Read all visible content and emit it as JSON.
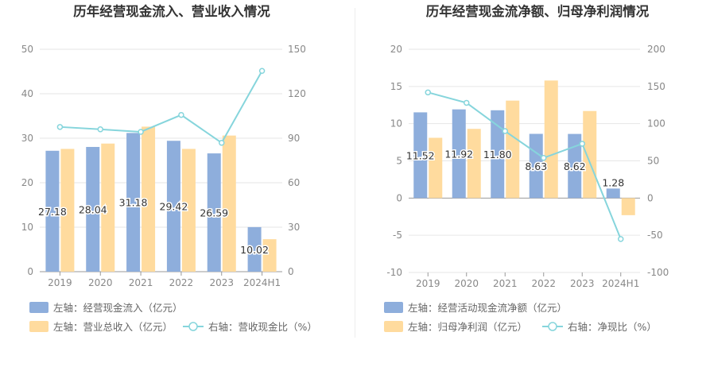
{
  "chart_data": [
    {
      "type": "bar",
      "title": "历年经营现金流入、营业收入情况",
      "categories": [
        "2019",
        "2020",
        "2021",
        "2022",
        "2023",
        "2024H1"
      ],
      "left_axis": {
        "ticks": [
          "0",
          "10",
          "20",
          "30",
          "40",
          "50"
        ],
        "ylim": [
          0,
          50
        ]
      },
      "right_axis": {
        "ticks": [
          "0",
          "30",
          "60",
          "90",
          "120",
          "150"
        ],
        "ylim": [
          0,
          150
        ]
      },
      "grid": true,
      "legend_position": "bottom-left",
      "series": [
        {
          "name": "左轴：经营现金流入（亿元）",
          "kind": "bar",
          "axis": "left",
          "color": "#8eaedc",
          "values": [
            27.18,
            28.04,
            31.18,
            29.42,
            26.59,
            10.02
          ],
          "labels": [
            "27.18",
            "28.04",
            "31.18",
            "29.42",
            "26.59",
            "10.02"
          ]
        },
        {
          "name": "左轴：营业总收入（亿元）",
          "kind": "bar",
          "axis": "left",
          "color": "#ffdb9e",
          "values": [
            27.6,
            28.8,
            32.6,
            27.6,
            30.6,
            7.3
          ]
        },
        {
          "name": "右轴：营收现金比（%）",
          "kind": "line",
          "axis": "right",
          "color": "#86d5dc",
          "values": [
            97.6,
            96.0,
            94.3,
            105.7,
            86.9,
            135.4
          ]
        }
      ]
    },
    {
      "type": "bar",
      "title": "历年经营现金流净额、归母净利润情况",
      "categories": [
        "2019",
        "2020",
        "2021",
        "2022",
        "2023",
        "2024H1"
      ],
      "left_axis": {
        "ticks": [
          "-10",
          "-5",
          "0",
          "5",
          "10",
          "15",
          "20"
        ],
        "ylim": [
          -10,
          20
        ]
      },
      "right_axis": {
        "ticks": [
          "-100",
          "-50",
          "0",
          "50",
          "100",
          "150",
          "200"
        ],
        "ylim": [
          -100,
          200
        ]
      },
      "grid": true,
      "legend_position": "bottom-left",
      "series": [
        {
          "name": "左轴：经营活动现金流净额（亿元）",
          "kind": "bar",
          "axis": "left",
          "color": "#8eaedc",
          "values": [
            11.52,
            11.92,
            11.8,
            8.63,
            8.62,
            1.28
          ],
          "labels": [
            "11.52",
            "11.92",
            "11.80",
            "8.63",
            "8.62",
            "1.28"
          ]
        },
        {
          "name": "左轴：归母净利润（亿元）",
          "kind": "bar",
          "axis": "left",
          "color": "#ffdb9e",
          "values": [
            8.1,
            9.3,
            13.1,
            15.8,
            11.7,
            -2.3
          ]
        },
        {
          "name": "右轴：净现比（%）",
          "kind": "line",
          "axis": "right",
          "color": "#86d5dc",
          "values": [
            142,
            128,
            90,
            54,
            73,
            -55
          ]
        }
      ]
    }
  ]
}
